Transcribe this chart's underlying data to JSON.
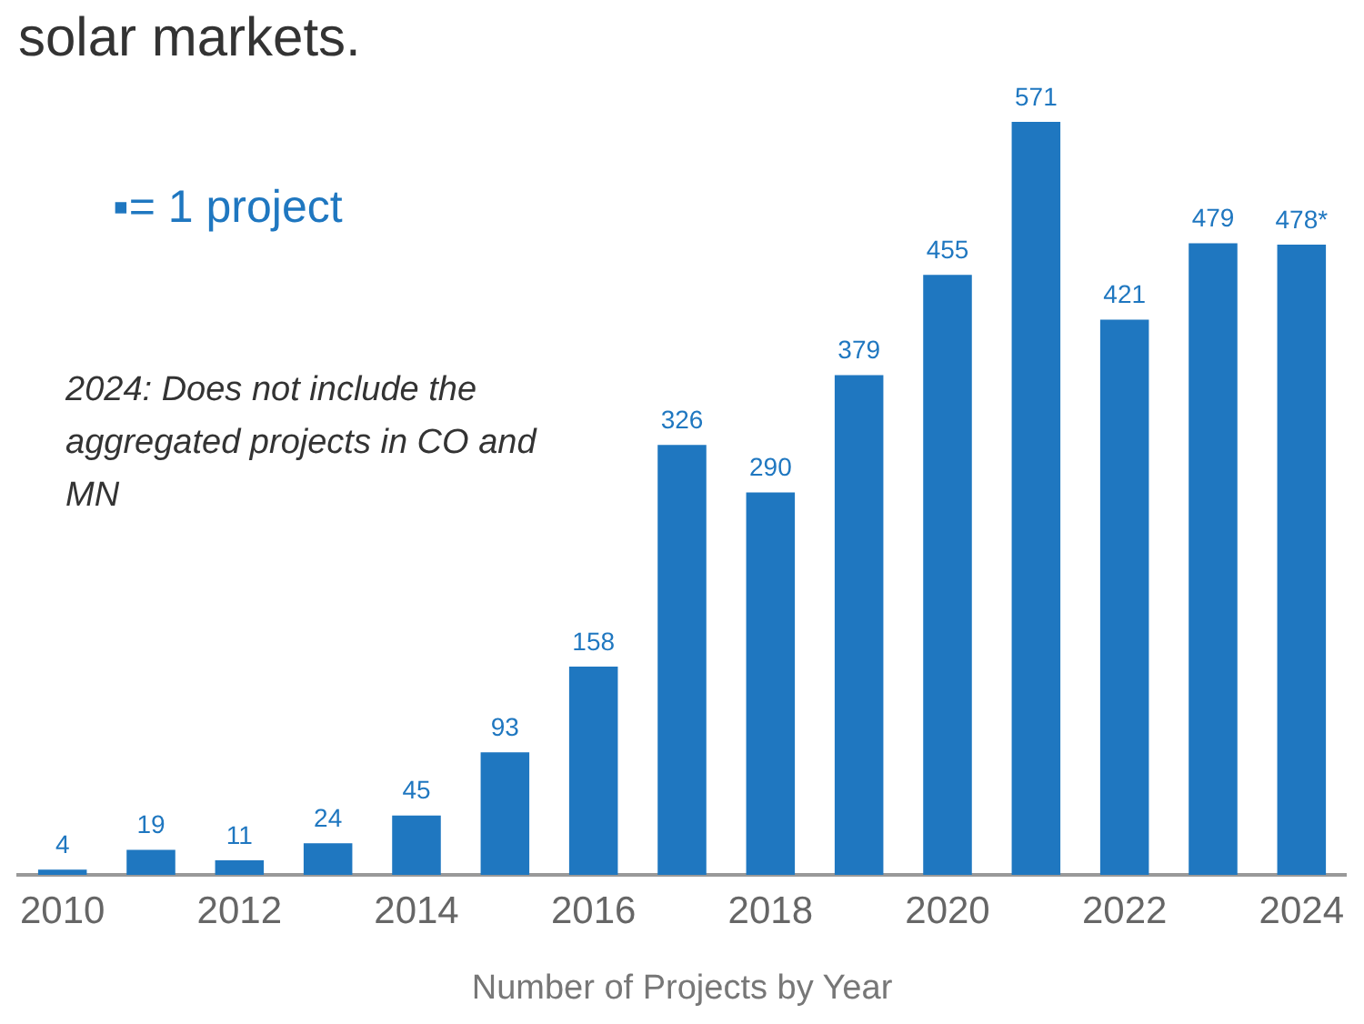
{
  "chart_data": {
    "type": "bar",
    "title": "solar markets.",
    "xlabel": "Number of Projects by Year",
    "categories": [
      "2010",
      null,
      "2012",
      null,
      "2014",
      null,
      "2016",
      null,
      "2018",
      null,
      "2020",
      null,
      "2022",
      null,
      "2024"
    ],
    "values": [
      4,
      19,
      11,
      24,
      45,
      93,
      158,
      326,
      290,
      379,
      455,
      571,
      421,
      479,
      478
    ],
    "value_labels": [
      "4",
      "19",
      "11",
      "24",
      "45",
      "93",
      "158",
      "326",
      "290",
      "379",
      "455",
      "571",
      "421",
      "479",
      "478*"
    ],
    "color": "#1f77c0",
    "grid": false,
    "legend": false,
    "tick_labels": "x",
    "annotations": [
      "▪= 1 project",
      "2024: Does not include the aggregated projects in CO and MN"
    ]
  }
}
